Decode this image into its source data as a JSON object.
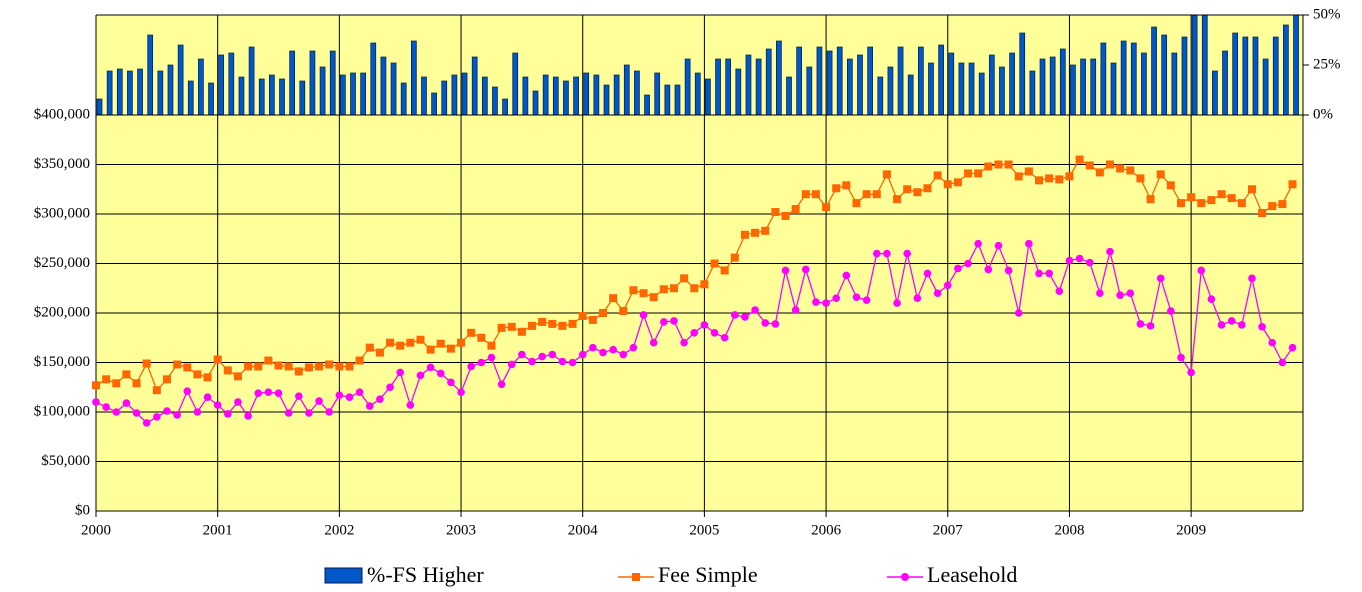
{
  "chart_data": [
    {
      "type": "bar",
      "series": [
        {
          "name": "%-FS Higher",
          "color": "#0057c8",
          "values": [
            8,
            22,
            23,
            22,
            23,
            40,
            22,
            25,
            35,
            17,
            28,
            16,
            30,
            31,
            19,
            34,
            18,
            20,
            18,
            32,
            17,
            32,
            24,
            32,
            20,
            21,
            21,
            36,
            29,
            26,
            16,
            37,
            19,
            11,
            17,
            20,
            21,
            29,
            19,
            14,
            8,
            31,
            19,
            12,
            20,
            19,
            17,
            19,
            21,
            20,
            15,
            20,
            25,
            22,
            10,
            21,
            15,
            15,
            28,
            21,
            18,
            28,
            28,
            23,
            30,
            28,
            33,
            37,
            19,
            34,
            24,
            34,
            32,
            34,
            28,
            30,
            34,
            19,
            24,
            34,
            20,
            34,
            26,
            35,
            31,
            26,
            26,
            21,
            30,
            24,
            31,
            41,
            22,
            28,
            29,
            33,
            25,
            28,
            28,
            36,
            26,
            37,
            36,
            31,
            44,
            40,
            31,
            39,
            50,
            50,
            22,
            32,
            41,
            39,
            39,
            28,
            39,
            45,
            50
          ]
        }
      ],
      "ylim": [
        0,
        50
      ],
      "yticks": [
        {
          "value": 0,
          "label": "0%"
        },
        {
          "value": 25,
          "label": "25%"
        },
        {
          "value": 50,
          "label": "50%"
        }
      ]
    },
    {
      "type": "line",
      "categories": [
        "2000",
        null,
        null,
        null,
        null,
        null,
        null,
        null,
        null,
        null,
        null,
        null,
        "2001",
        null,
        null,
        null,
        null,
        null,
        null,
        null,
        null,
        null,
        null,
        null,
        "2002",
        null,
        null,
        null,
        null,
        null,
        null,
        null,
        null,
        null,
        null,
        null,
        "2003",
        null,
        null,
        null,
        null,
        null,
        null,
        null,
        null,
        null,
        null,
        null,
        "2004",
        null,
        null,
        null,
        null,
        null,
        null,
        null,
        null,
        null,
        null,
        null,
        "2005",
        null,
        null,
        null,
        null,
        null,
        null,
        null,
        null,
        null,
        null,
        null,
        "2006",
        null,
        null,
        null,
        null,
        null,
        null,
        null,
        null,
        null,
        null,
        null,
        "2007",
        null,
        null,
        null,
        null,
        null,
        null,
        null,
        null,
        null,
        null,
        null,
        "2008",
        null,
        null,
        null,
        null,
        null,
        null,
        null,
        null,
        null,
        null,
        null,
        "2009",
        null,
        null,
        null,
        null,
        null,
        null,
        null,
        null,
        null,
        null
      ],
      "series": [
        {
          "name": "Fee Simple",
          "color": "#ff6600",
          "marker": "square",
          "values": [
            127000,
            133000,
            129000,
            138000,
            129000,
            149000,
            122000,
            133000,
            148000,
            145000,
            138000,
            135000,
            153000,
            142000,
            136000,
            146000,
            146000,
            152000,
            147000,
            146000,
            141000,
            145000,
            146000,
            148000,
            146000,
            146000,
            152000,
            165000,
            160000,
            170000,
            167000,
            170000,
            173000,
            163000,
            169000,
            164000,
            170000,
            180000,
            175000,
            167000,
            185000,
            186000,
            181000,
            187000,
            191000,
            189000,
            187000,
            189000,
            197000,
            193000,
            200000,
            215000,
            202000,
            223000,
            220000,
            216000,
            224000,
            225000,
            235000,
            225000,
            229000,
            250000,
            243000,
            256000,
            279000,
            281000,
            283000,
            302000,
            298000,
            305000,
            320000,
            320000,
            307000,
            326000,
            329000,
            311000,
            320000,
            320000,
            340000,
            315000,
            325000,
            322000,
            326000,
            339000,
            330000,
            332000,
            341000,
            341000,
            348000,
            350000,
            350000,
            338000,
            343000,
            334000,
            336000,
            335000,
            338000,
            355000,
            349000,
            342000,
            350000,
            346000,
            344000,
            336000,
            315000,
            340000,
            329000,
            311000,
            317000,
            311000,
            314000,
            320000,
            316000,
            311000,
            325000,
            301000,
            308000,
            310000,
            330000
          ]
        },
        {
          "name": "Leasehold",
          "color": "#ff00ff",
          "marker": "circle",
          "values": [
            110000,
            105000,
            100000,
            109000,
            99000,
            89000,
            95000,
            101000,
            97000,
            121000,
            100000,
            115000,
            107000,
            98000,
            110000,
            96000,
            119000,
            120000,
            119000,
            99000,
            116000,
            99000,
            111000,
            100000,
            117000,
            115000,
            120000,
            106000,
            113000,
            125000,
            140000,
            107000,
            137000,
            145000,
            139000,
            130000,
            120000,
            146000,
            150000,
            155000,
            128000,
            148000,
            158000,
            151000,
            156000,
            158000,
            151000,
            150000,
            158000,
            165000,
            160000,
            163000,
            158000,
            165000,
            198000,
            170000,
            191000,
            192000,
            170000,
            180000,
            188000,
            180000,
            175000,
            198000,
            196000,
            203000,
            190000,
            189000,
            243000,
            203000,
            244000,
            211000,
            210000,
            215000,
            238000,
            216000,
            213000,
            260000,
            260000,
            210000,
            260000,
            215000,
            240000,
            220000,
            228000,
            245000,
            250000,
            270000,
            244000,
            268000,
            243000,
            200000,
            270000,
            240000,
            240000,
            222000,
            253000,
            255000,
            251000,
            220000,
            262000,
            218000,
            220000,
            189000,
            187000,
            235000,
            202000,
            155000,
            140000,
            243000,
            214000,
            188000,
            192000,
            188000,
            235000,
            186000,
            170000,
            150000,
            165000
          ]
        }
      ],
      "ylim": [
        0,
        400000
      ],
      "yticks": [
        {
          "value": 0,
          "label": "$0"
        },
        {
          "value": 50000,
          "label": "$50,000"
        },
        {
          "value": 100000,
          "label": "$100,000"
        },
        {
          "value": 150000,
          "label": "$150,000"
        },
        {
          "value": 200000,
          "label": "$200,000"
        },
        {
          "value": 250000,
          "label": "$250,000"
        },
        {
          "value": 300000,
          "label": "$300,000"
        },
        {
          "value": 350000,
          "label": "$350,000"
        },
        {
          "value": 400000,
          "label": "$400,000"
        }
      ],
      "grid": true
    }
  ]
}
